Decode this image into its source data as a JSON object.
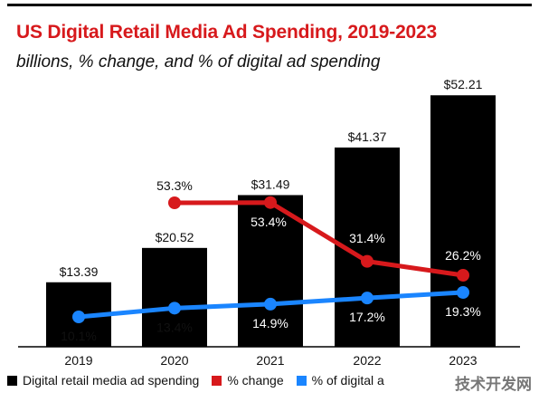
{
  "chart_data": {
    "type": "bar",
    "title": "US Digital Retail Media Ad Spending, 2019-2023",
    "subtitle": "billions, % change, and % of digital ad spending",
    "categories": [
      "2019",
      "2020",
      "2021",
      "2022",
      "2023"
    ],
    "series": [
      {
        "name": "Digital retail media ad spending",
        "type": "bar",
        "values": [
          13.39,
          20.52,
          31.49,
          41.37,
          52.21
        ],
        "labels": [
          "$13.39",
          "$20.52",
          "$31.49",
          "$41.37",
          "$52.21"
        ],
        "color": "#000000"
      },
      {
        "name": "% change",
        "type": "line",
        "values": [
          null,
          53.3,
          53.4,
          31.4,
          26.2
        ],
        "labels": [
          "",
          "53.3%",
          "53.4%",
          "31.4%",
          "26.2%"
        ],
        "color": "#d7191c"
      },
      {
        "name": "% of digital ad spending",
        "type": "line",
        "values": [
          10.1,
          13.4,
          14.9,
          17.2,
          19.3
        ],
        "labels": [
          "10.1%",
          "13.4%",
          "14.9%",
          "17.2%",
          "19.3%"
        ],
        "color": "#1a85ff"
      }
    ],
    "ylim": [
      0,
      55
    ],
    "legend_position": "bottom"
  },
  "legend": {
    "bars": "Digital retail media ad spending",
    "change": "% change",
    "share": "% of digital a"
  },
  "watermark": "技术开发网"
}
